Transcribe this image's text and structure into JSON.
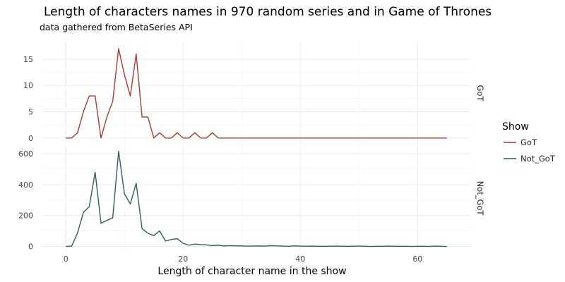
{
  "chart_data": {
    "type": "line",
    "title": "Length of characters names in 970 random series and in Game of Thrones",
    "subtitle": "data gathered from BetaSeries API",
    "xlabel": "Length of character name in the show",
    "ylabel": "",
    "xlim": [
      -4,
      69
    ],
    "x_ticks": [
      0,
      20,
      40,
      60
    ],
    "legend": {
      "title": "Show",
      "position": "right"
    },
    "grid": true,
    "facets": [
      {
        "name": "GoT",
        "color": "#a83a34",
        "ylim": [
          -1.1,
          18.2
        ],
        "y_ticks": [
          0,
          5,
          10,
          15
        ],
        "x": [
          0,
          1,
          2,
          3,
          4,
          5,
          6,
          7,
          8,
          9,
          10,
          11,
          12,
          13,
          14,
          15,
          16,
          17,
          18,
          19,
          20,
          21,
          22,
          23,
          24,
          25,
          26,
          27,
          28,
          29,
          30,
          31,
          32,
          33,
          34,
          35,
          36,
          37,
          38,
          39,
          40,
          41,
          42,
          43,
          44,
          45,
          46,
          47,
          48,
          49,
          50,
          51,
          52,
          53,
          54,
          55,
          56,
          57,
          58,
          59,
          60,
          61,
          62,
          63,
          64,
          65
        ],
        "values": [
          0,
          0,
          1,
          5,
          8,
          8,
          0,
          4,
          7,
          17,
          12,
          8,
          16,
          4,
          4,
          0,
          1,
          0,
          0,
          1,
          0,
          0,
          1,
          0,
          0,
          1,
          0,
          0,
          0,
          0,
          0,
          0,
          0,
          0,
          0,
          0,
          0,
          0,
          0,
          0,
          0,
          0,
          0,
          0,
          0,
          0,
          0,
          0,
          0,
          0,
          0,
          0,
          0,
          0,
          0,
          0,
          0,
          0,
          0,
          0,
          0,
          0,
          0,
          0,
          0,
          0
        ]
      },
      {
        "name": "Not_GoT",
        "color": "#2d5e5c",
        "ylim": [
          -25,
          650
        ],
        "y_ticks": [
          0,
          200,
          400,
          600
        ],
        "x": [
          0,
          1,
          2,
          3,
          4,
          5,
          6,
          7,
          8,
          9,
          10,
          11,
          12,
          13,
          14,
          15,
          16,
          17,
          18,
          19,
          20,
          21,
          22,
          23,
          24,
          25,
          26,
          27,
          28,
          29,
          30,
          31,
          32,
          33,
          34,
          35,
          36,
          37,
          38,
          39,
          40,
          41,
          42,
          43,
          44,
          45,
          46,
          47,
          48,
          49,
          50,
          51,
          52,
          53,
          54,
          55,
          56,
          57,
          58,
          59,
          60,
          61,
          62,
          63,
          64,
          65
        ],
        "values": [
          0,
          2,
          88,
          220,
          258,
          480,
          150,
          168,
          185,
          615,
          340,
          275,
          408,
          115,
          85,
          70,
          100,
          35,
          45,
          50,
          20,
          8,
          15,
          12,
          10,
          5,
          8,
          3,
          5,
          4,
          3,
          2,
          2,
          3,
          2,
          5,
          3,
          2,
          1,
          3,
          2,
          1,
          2,
          1,
          1,
          1,
          2,
          1,
          1,
          1,
          2,
          1,
          0,
          1,
          1,
          2,
          1,
          1,
          1,
          0,
          1,
          1,
          0,
          2,
          1,
          0
        ]
      }
    ]
  }
}
